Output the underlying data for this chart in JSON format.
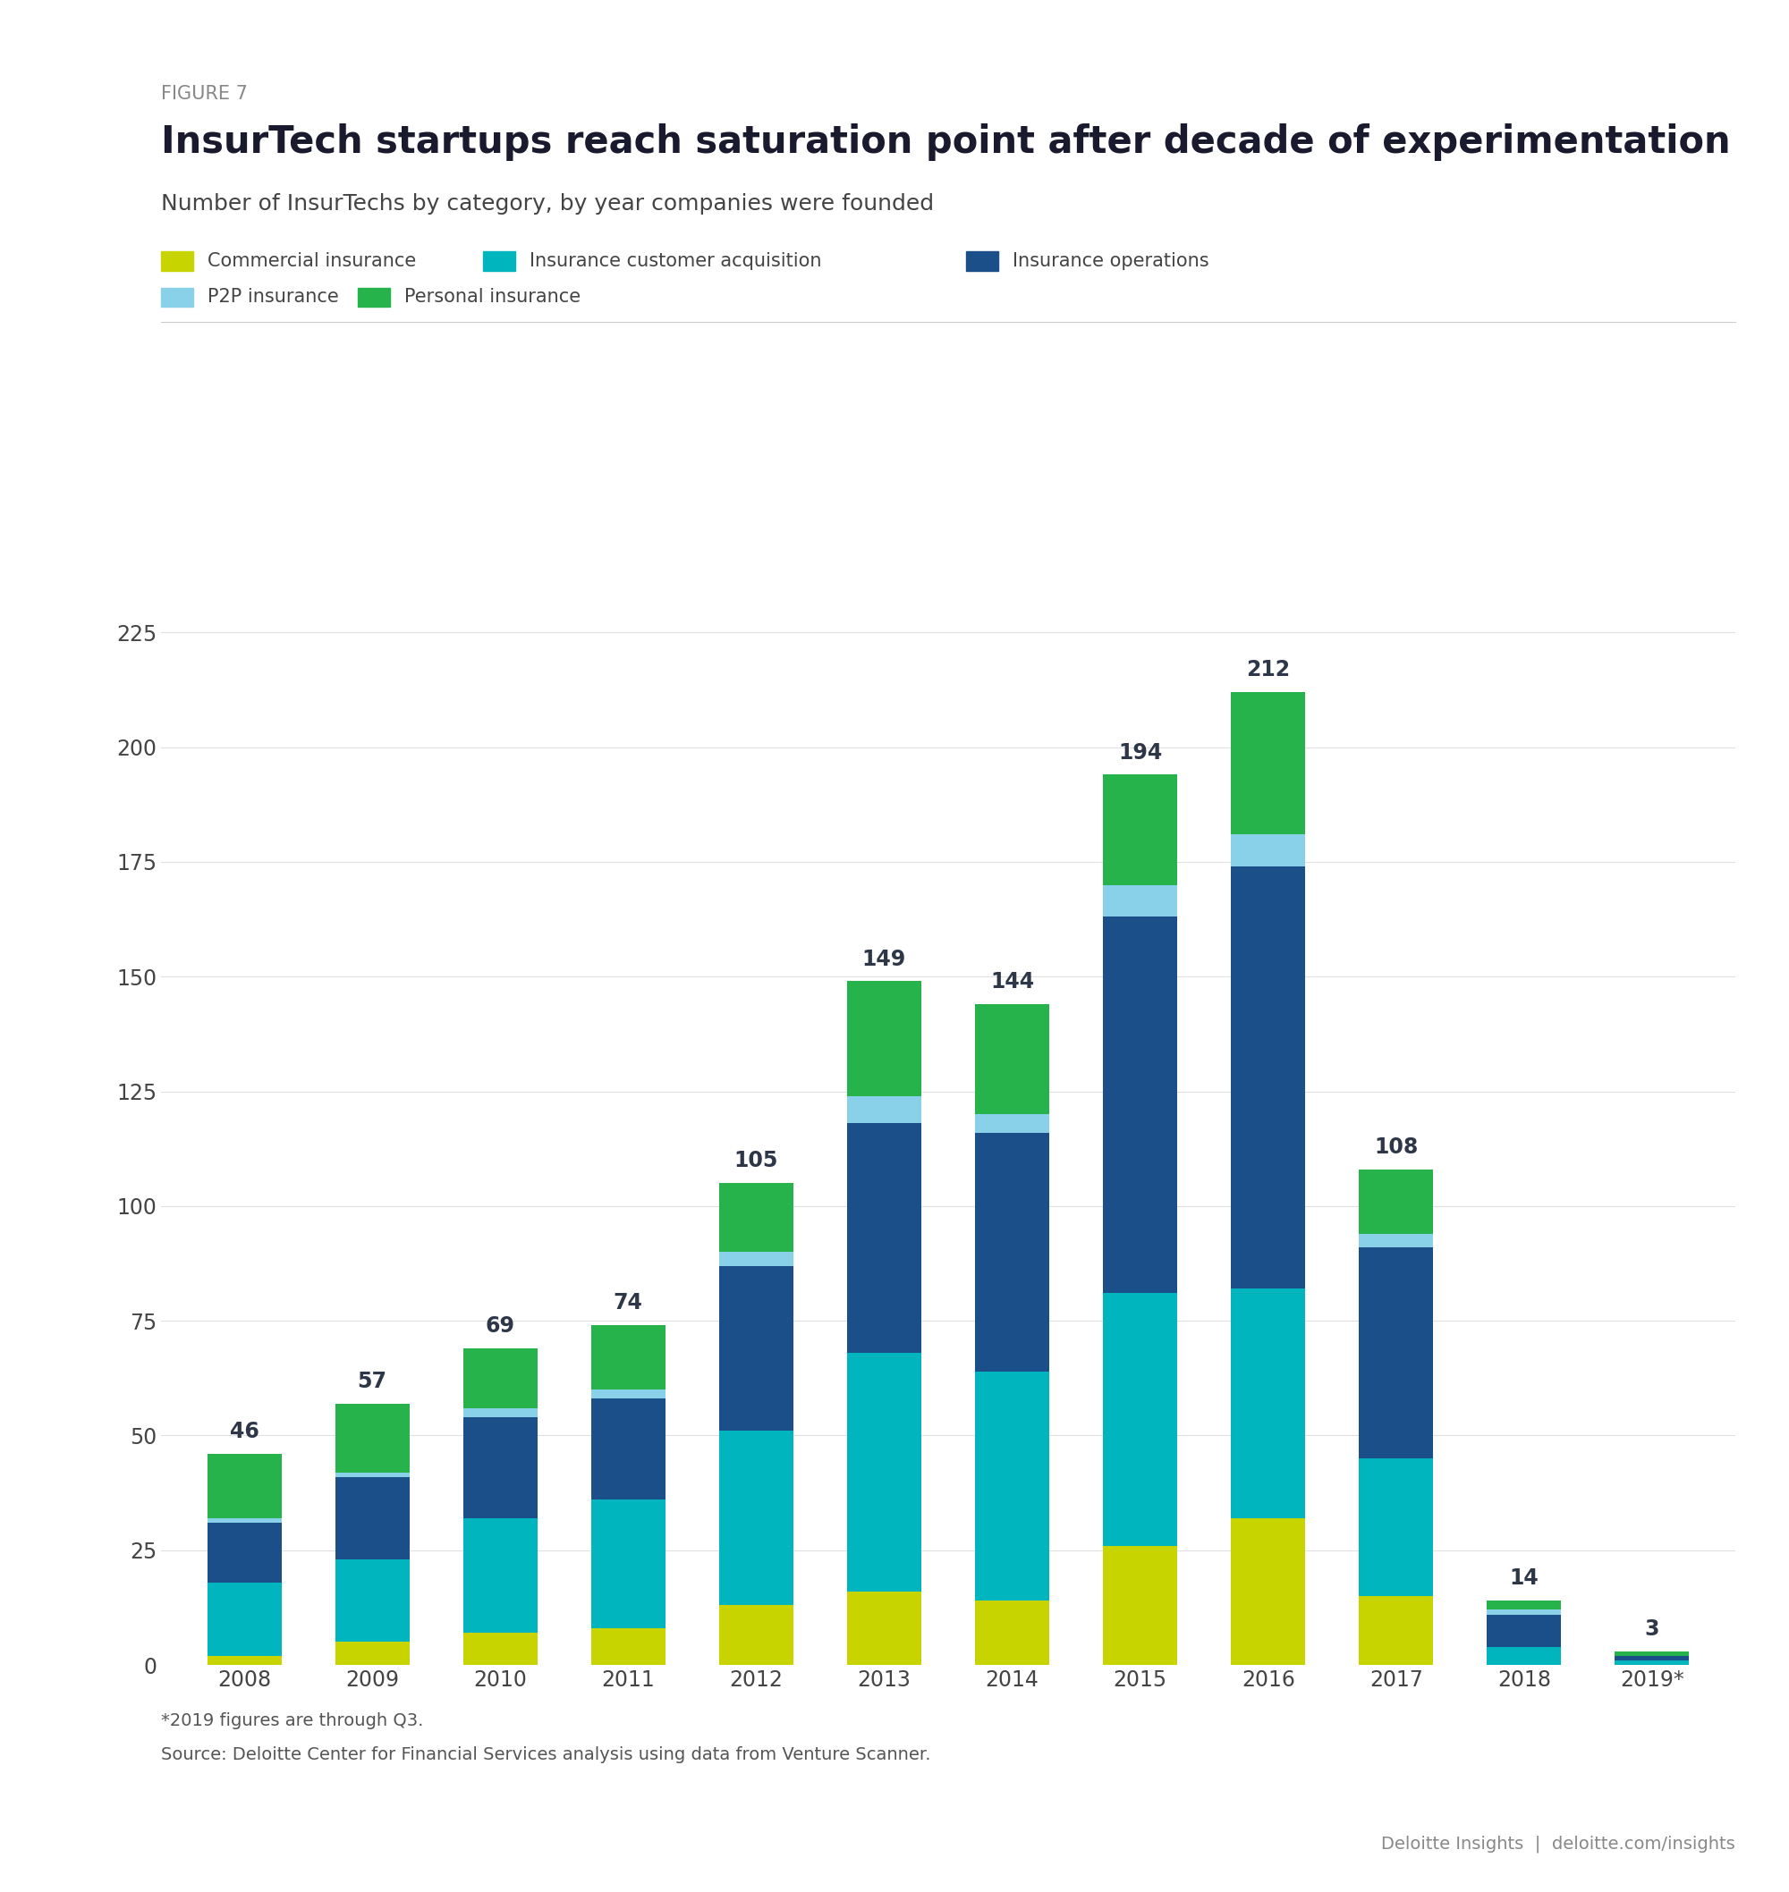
{
  "figure_label": "FIGURE 7",
  "title": "InsurTech startups reach saturation point after decade of experimentation",
  "subtitle": "Number of InsurTechs by category, by year companies were founded",
  "categories": [
    "2008",
    "2009",
    "2010",
    "2011",
    "2012",
    "2013",
    "2014",
    "2015",
    "2016",
    "2017",
    "2018",
    "2019*"
  ],
  "totals": [
    46,
    57,
    69,
    74,
    105,
    149,
    144,
    194,
    212,
    108,
    14,
    3
  ],
  "series": {
    "Commercial insurance": {
      "color": "#c8d400",
      "values": [
        2,
        5,
        7,
        8,
        13,
        16,
        14,
        26,
        32,
        15,
        0,
        0
      ]
    },
    "Insurance customer acquisition": {
      "color": "#00b5bd",
      "values": [
        16,
        18,
        25,
        28,
        38,
        52,
        50,
        55,
        50,
        30,
        4,
        1
      ]
    },
    "Insurance operations": {
      "color": "#1b4f8a",
      "values": [
        13,
        18,
        22,
        22,
        36,
        50,
        52,
        82,
        92,
        46,
        7,
        1
      ]
    },
    "P2P insurance": {
      "color": "#89d1e8",
      "values": [
        1,
        1,
        2,
        2,
        3,
        6,
        4,
        7,
        7,
        3,
        1,
        0
      ]
    },
    "Personal insurance": {
      "color": "#26b34b",
      "values": [
        14,
        15,
        13,
        14,
        15,
        25,
        24,
        24,
        31,
        14,
        2,
        1
      ]
    }
  },
  "legend_order": [
    "Commercial insurance",
    "Insurance customer acquisition",
    "Insurance operations",
    "P2P insurance",
    "Personal insurance"
  ],
  "ylim": [
    0,
    235
  ],
  "yticks": [
    0,
    25,
    50,
    75,
    100,
    125,
    150,
    175,
    200,
    225
  ],
  "footnote1": "*2019 figures are through Q3.",
  "footnote2": "Source: Deloitte Center for Financial Services analysis using data from Venture Scanner.",
  "branding": "Deloitte Insights  |  deloitte.com/insights",
  "background_color": "#ffffff",
  "bar_width": 0.58
}
